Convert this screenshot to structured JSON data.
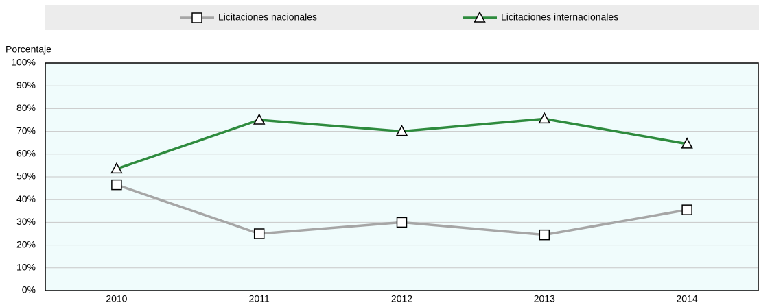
{
  "chart_data": {
    "type": "line",
    "y_label": "Porcentaje",
    "categories": [
      "2010",
      "2011",
      "2012",
      "2013",
      "2014"
    ],
    "series": [
      {
        "name": "Licitaciones nacionales",
        "color": "#a6a6a6",
        "marker": "square",
        "values": [
          46.5,
          25,
          30,
          24.5,
          35.5
        ]
      },
      {
        "name": "Licitaciones internacionales",
        "color": "#2e8b3e",
        "marker": "triangle",
        "values": [
          53.5,
          75,
          70,
          75.5,
          64.5
        ]
      }
    ],
    "ylim": [
      0,
      100
    ],
    "yticks": [
      {
        "value": 0,
        "label": "0%"
      },
      {
        "value": 10,
        "label": "10%"
      },
      {
        "value": 20,
        "label": "20%"
      },
      {
        "value": 30,
        "label": "30%"
      },
      {
        "value": 40,
        "label": "40%"
      },
      {
        "value": 50,
        "label": "50%"
      },
      {
        "value": 60,
        "label": "60%"
      },
      {
        "value": 70,
        "label": "70%"
      },
      {
        "value": 80,
        "label": "80%"
      },
      {
        "value": 90,
        "label": "90%"
      },
      {
        "value": 100,
        "label": "100%"
      }
    ],
    "grid": true,
    "legend": "top"
  }
}
